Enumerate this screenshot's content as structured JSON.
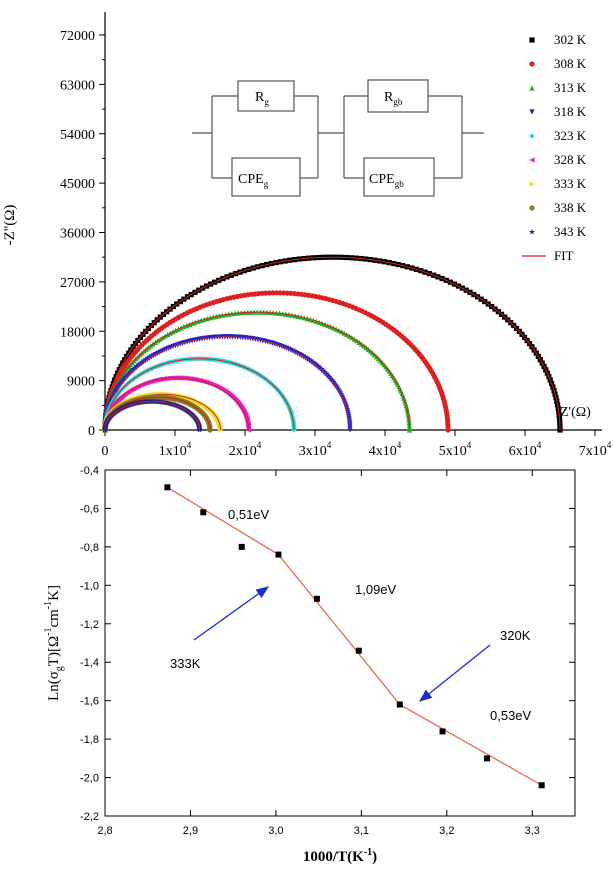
{
  "chart_data": [
    {
      "type": "scatter",
      "xlabel": "Z'(Ω)",
      "ylabel": "-Z''(Ω)",
      "xlim": [
        0,
        70000
      ],
      "ylim": [
        0,
        72000
      ],
      "x_ticks": [
        0,
        10000,
        20000,
        30000,
        40000,
        50000,
        60000,
        70000
      ],
      "x_tick_labels": [
        "0",
        "1x10",
        "2x10",
        "3x10",
        "4x10",
        "5x10",
        "6x10",
        "7x10"
      ],
      "x_tick_exponent": "4",
      "y_ticks": [
        "0",
        "9000",
        "18000",
        "27000",
        "36000",
        "45000",
        "54000",
        "63000",
        "72000"
      ],
      "circuit": {
        "r_g": "R",
        "r_g_sub": "g",
        "r_gb": "R",
        "r_gb_sub": "gb",
        "cpe_g": "CPE",
        "cpe_g_sub": "g",
        "cpe_gb": "CPE",
        "cpe_gb_sub": "gb"
      },
      "fit_label": "FIT",
      "fit_color": "#d62020",
      "series": [
        {
          "name": "302 K",
          "marker": "square",
          "color": "#000000",
          "r_end": 65000,
          "peak": 31500
        },
        {
          "name": "308 K",
          "marker": "circle",
          "color": "#e02020",
          "r_end": 49000,
          "peak": 25000
        },
        {
          "name": "313 K",
          "marker": "triangle-up",
          "color": "#20b020",
          "r_end": 43500,
          "peak": 21500
        },
        {
          "name": "318 K",
          "marker": "triangle-down",
          "color": "#2020c8",
          "r_end": 35000,
          "peak": 17000
        },
        {
          "name": "323 K",
          "marker": "diamond",
          "color": "#20d8d8",
          "r_end": 27000,
          "peak": 13000
        },
        {
          "name": "328 K",
          "marker": "triangle-left",
          "color": "#e020c0",
          "r_end": 20500,
          "peak": 9500
        },
        {
          "name": "333 K",
          "marker": "triangle-right",
          "color": "#e8e020",
          "r_end": 16500,
          "peak": 6500
        },
        {
          "name": "338 K",
          "marker": "hexagon",
          "color": "#8a7a20",
          "r_end": 15000,
          "peak": 6000
        },
        {
          "name": "343 K",
          "marker": "star",
          "color": "#20207a",
          "r_end": 13500,
          "peak": 5200
        }
      ]
    },
    {
      "type": "line",
      "xlabel": "1000/T(K",
      "xlabel_sup": "-1",
      "xlabel_close": ")",
      "ylabel": "Ln(σ T)[Ω cm K]",
      "ylabel_parts": {
        "pre": "Ln(σ",
        "sub": "g",
        "mid1": "T)[Ω",
        "sup1": "-1",
        "mid2": "cm",
        "sup2": "-1",
        "post": "K]"
      },
      "xlim": [
        2.8,
        3.35
      ],
      "ylim": [
        -2.2,
        -0.4
      ],
      "x_ticks": [
        "2,8",
        "2,9",
        "3,0",
        "3,1",
        "3,2",
        "3,3"
      ],
      "y_ticks": [
        "-0,4",
        "-0,6",
        "-0,8",
        "-1,0",
        "-1,2",
        "-1,4",
        "-1,6",
        "-1,8",
        "-2,0",
        "-2,2"
      ],
      "x": [
        2.873,
        2.915,
        2.96,
        3.003,
        3.048,
        3.097,
        3.145,
        3.195,
        3.247,
        3.311
      ],
      "y": [
        -0.49,
        -0.62,
        -0.8,
        -0.84,
        -1.07,
        -1.34,
        -1.62,
        -1.76,
        -1.9,
        -2.04
      ],
      "fit_x": [
        2.873,
        3.003,
        3.145,
        3.311
      ],
      "fit_y": [
        -0.49,
        -0.84,
        -1.62,
        -2.04
      ],
      "line_color": "#e8604a",
      "arrow_color": "#1a2ec8",
      "annotations": [
        {
          "text": "0,51eV"
        },
        {
          "text": "1,09eV"
        },
        {
          "text": "0,53eV"
        },
        {
          "text": "333K"
        },
        {
          "text": "320K"
        }
      ]
    }
  ]
}
